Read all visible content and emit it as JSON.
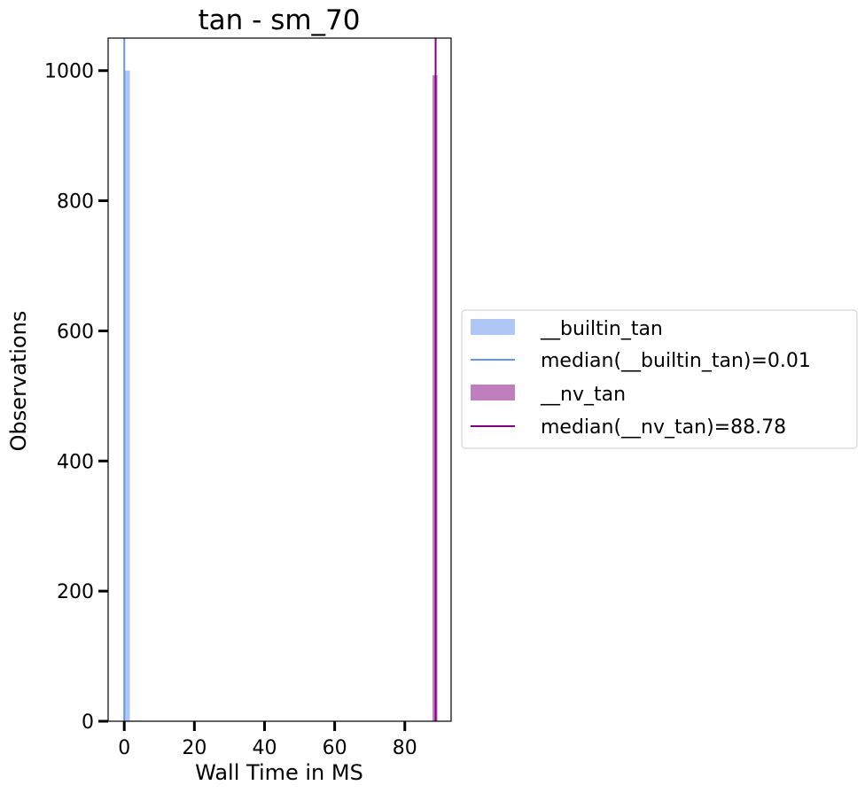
{
  "chart_data": {
    "type": "bar",
    "title": "tan - sm_70",
    "xlabel": "Wall Time in MS",
    "ylabel": "Observations",
    "xlim": [
      -4.6,
      93.2
    ],
    "ylim": [
      0,
      1050
    ],
    "xticks": [
      0,
      20,
      40,
      60,
      80
    ],
    "yticks": [
      0,
      200,
      400,
      600,
      800,
      1000
    ],
    "grid": false,
    "legend_position": "right-outside",
    "series": [
      {
        "name": "__builtin_tan",
        "kind": "histogram",
        "color": "#aec7f5",
        "bins": [
          {
            "x0": -0.1,
            "x1": 1.6,
            "count": 1000
          },
          {
            "x0": 1.6,
            "x1": 5.0,
            "count": 1
          }
        ]
      },
      {
        "name": "__nv_tan",
        "kind": "histogram",
        "color": "#bf7fbf",
        "bins": [
          {
            "x0": 87.9,
            "x1": 89.3,
            "count": 993
          }
        ]
      }
    ],
    "medians": [
      {
        "name": "median(__builtin_tan)=0.01",
        "value": 0.01,
        "color": "#6495ed"
      },
      {
        "name": "median(__nv_tan)=88.78",
        "value": 88.78,
        "color": "#800080"
      }
    ]
  }
}
